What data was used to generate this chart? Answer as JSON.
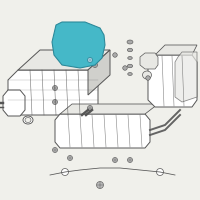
{
  "bg_color": "#f0f0eb",
  "outline_color": "#555555",
  "highlight_color": "#45b8c8",
  "highlight_edge": "#2a8899",
  "line_width": 0.7,
  "small_parts_color": "#888888",
  "light_fill": "#e8e8e4",
  "mid_fill": "#d0d0cc"
}
